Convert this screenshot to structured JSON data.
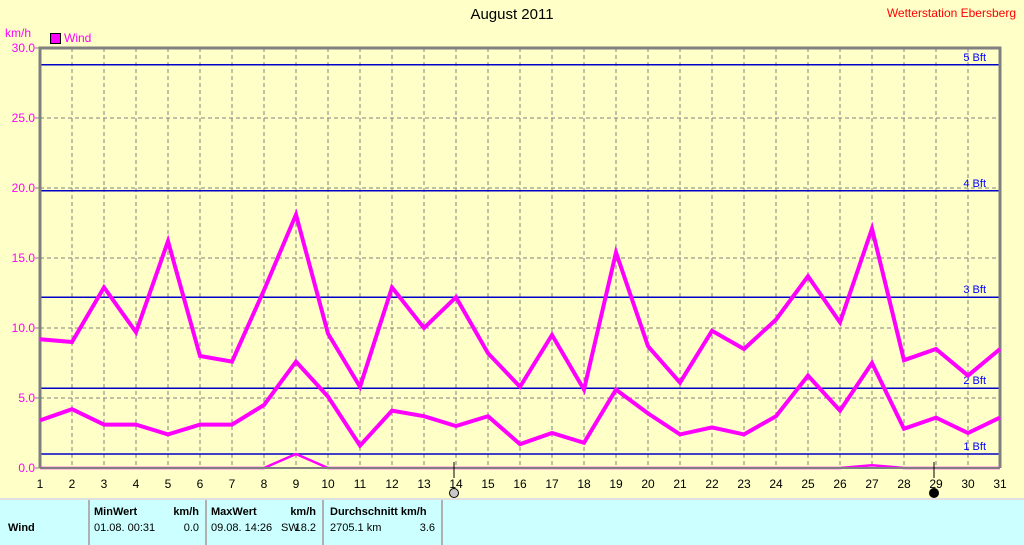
{
  "title": "August 2011",
  "station": "Wetterstation Ebersberg",
  "chart_data": {
    "type": "line",
    "title": "August 2011",
    "ylabel": "km/h",
    "ylim": [
      0,
      30
    ],
    "yticks": [
      "0.0",
      "5.0",
      "10.0",
      "15.0",
      "20.0",
      "25.0",
      "30.0"
    ],
    "x": [
      1,
      2,
      3,
      4,
      5,
      6,
      7,
      8,
      9,
      10,
      11,
      12,
      13,
      14,
      15,
      16,
      17,
      18,
      19,
      20,
      21,
      22,
      23,
      24,
      25,
      26,
      27,
      28,
      29,
      30,
      31
    ],
    "legend": "Wind",
    "legend_position": "top-left",
    "grid": true,
    "color": "#ff00ff",
    "series": [
      {
        "values": [
          9.2,
          9.0,
          12.9,
          9.7,
          16.2,
          8.0,
          7.6,
          12.7,
          18.1,
          9.6,
          5.8,
          12.9,
          10.0,
          12.2,
          8.2,
          5.8,
          9.5,
          5.6,
          15.4,
          8.7,
          6.1,
          9.8,
          8.5,
          10.6,
          13.7,
          10.4,
          17.1,
          7.7,
          8.5,
          6.6,
          8.5
        ]
      },
      {
        "values": [
          3.4,
          4.2,
          3.1,
          3.1,
          2.4,
          3.1,
          3.1,
          4.5,
          7.6,
          5.1,
          1.6,
          4.1,
          3.7,
          3.0,
          3.7,
          1.7,
          2.5,
          1.8,
          5.6,
          3.9,
          2.4,
          2.9,
          2.4,
          3.7,
          6.6,
          4.1,
          7.5,
          2.8,
          3.6,
          2.5,
          3.6
        ]
      },
      {
        "values": [
          0,
          0,
          0,
          0,
          0,
          0,
          0,
          0,
          1.0,
          0,
          0,
          0,
          0,
          0,
          0,
          0,
          0,
          0,
          0,
          0,
          0,
          0,
          0,
          0,
          0,
          0,
          0.2,
          0,
          0,
          0,
          0
        ]
      }
    ],
    "reference_lines": [
      {
        "label": "1 Bft",
        "value": 1.0
      },
      {
        "label": "2 Bft",
        "value": 5.7
      },
      {
        "label": "3 Bft",
        "value": 12.2
      },
      {
        "label": "4 Bft",
        "value": 19.8
      },
      {
        "label": "5 Bft",
        "value": 28.8
      }
    ],
    "moon_markers": [
      {
        "day": 14,
        "phase": "full-moon-icon"
      },
      {
        "day": 29,
        "phase": "new-moon-icon"
      }
    ]
  },
  "table": {
    "row_label": "Wind",
    "min": {
      "header": "MinWert",
      "unit": "km/h",
      "time": "01.08.  00:31",
      "value": "0.0"
    },
    "max": {
      "header": "MaxWert",
      "unit": "km/h",
      "time": "09.08.  14:26",
      "dir": "SW",
      "value": "18.2"
    },
    "avg": {
      "header": "Durchschnitt km/h",
      "distance": "2705.1 km",
      "value": "3.6"
    }
  }
}
